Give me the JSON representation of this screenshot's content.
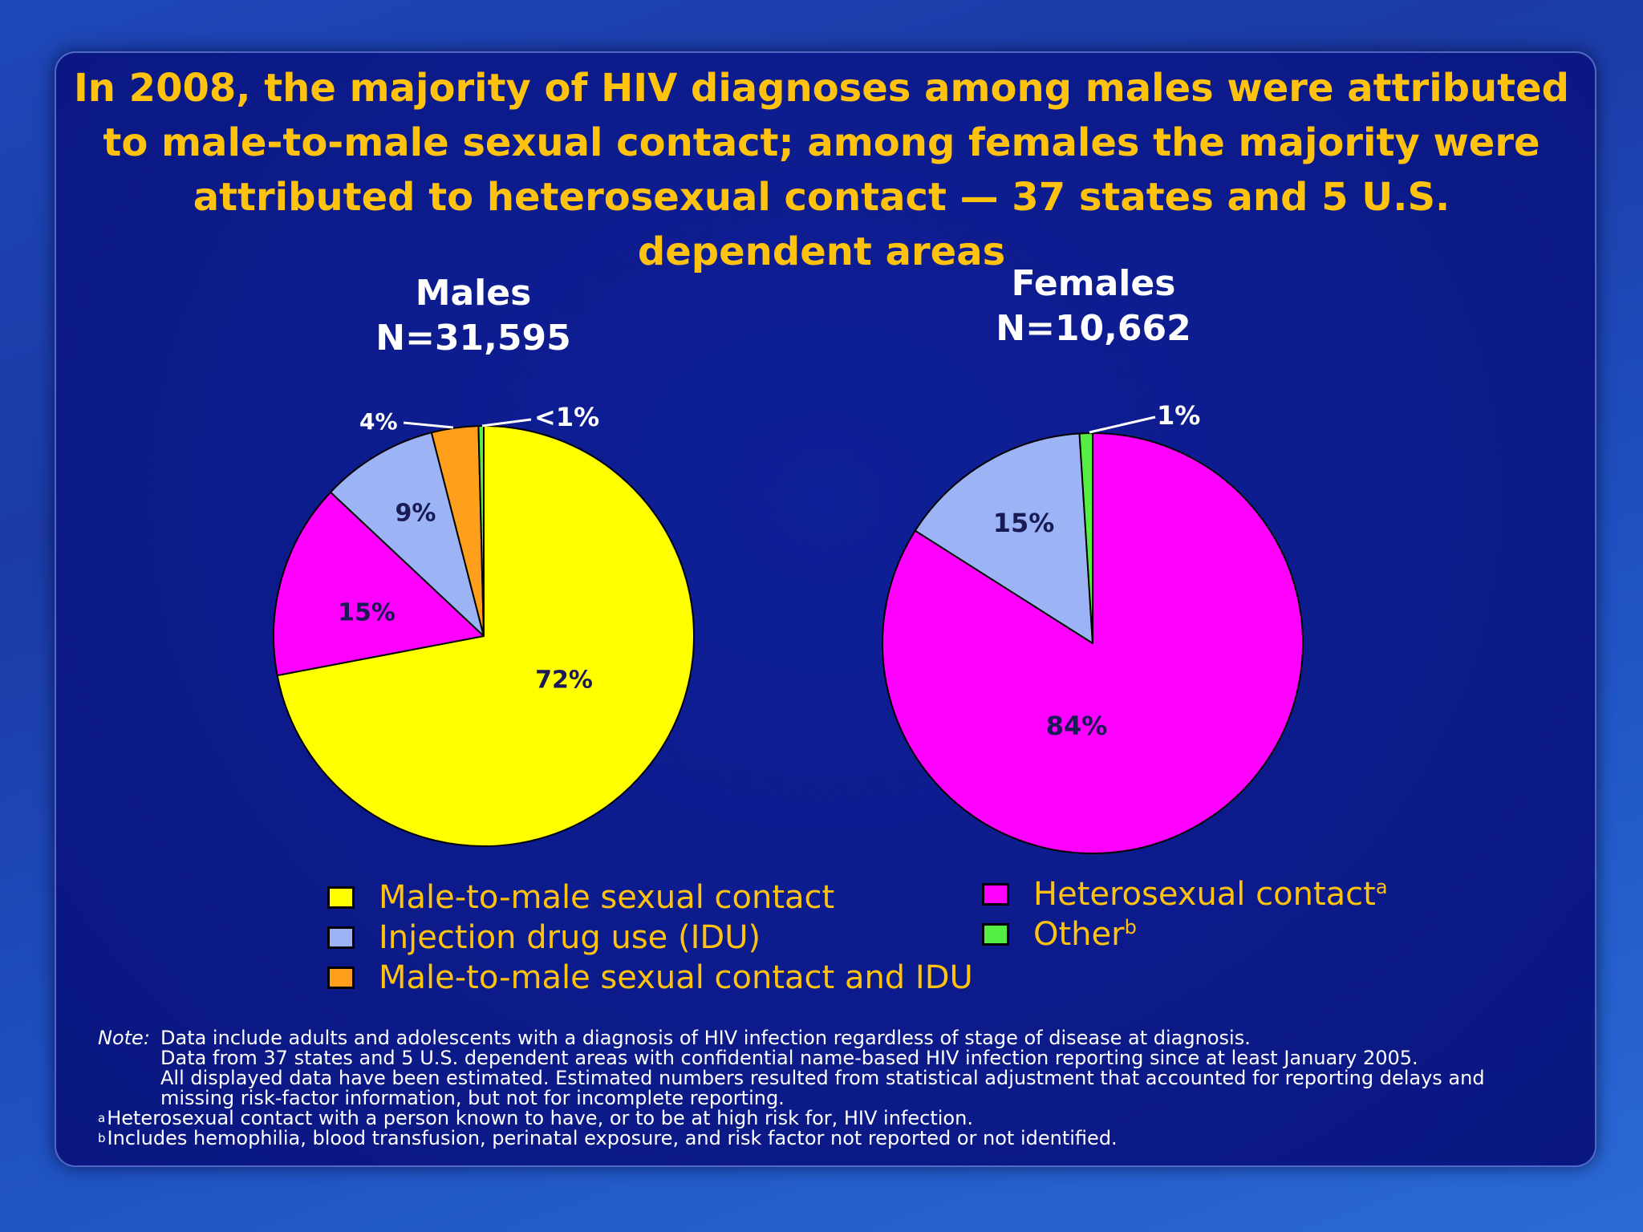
{
  "title": "In 2008, the majority of HIV diagnoses among males were attributed to male-to-male sexual contact; among females the majority were attributed to heterosexual contact — 37 states and 5 U.S. dependent areas",
  "colors": {
    "male_to_male": "#ffff00",
    "idu": "#9cb3f5",
    "mm_and_idu": "#ff9f1c",
    "heterosexual": "#ff00ff",
    "other": "#55ee44",
    "title": "#ffc20e"
  },
  "chart_data": [
    {
      "type": "pie",
      "title": "Males",
      "subtitle": "N=31,595",
      "slices": [
        {
          "name": "Male-to-male sexual contact",
          "value": 72,
          "label": "72%",
          "color": "#ffff00"
        },
        {
          "name": "Heterosexual contact",
          "value": 15,
          "label": "15%",
          "color": "#ff00ff"
        },
        {
          "name": "Injection drug use (IDU)",
          "value": 9,
          "label": "9%",
          "color": "#9cb3f5"
        },
        {
          "name": "Male-to-male sexual contact and IDU",
          "value": 3.6,
          "label": "4%",
          "color": "#ff9f1c"
        },
        {
          "name": "Other",
          "value": 0.4,
          "label": "<1%",
          "color": "#55ee44"
        }
      ]
    },
    {
      "type": "pie",
      "title": "Females",
      "subtitle": "N=10,662",
      "slices": [
        {
          "name": "Heterosexual contact",
          "value": 84,
          "label": "84%",
          "color": "#ff00ff"
        },
        {
          "name": "Injection drug use (IDU)",
          "value": 15,
          "label": "15%",
          "color": "#9cb3f5"
        },
        {
          "name": "Other",
          "value": 1,
          "label": "1%",
          "color": "#55ee44"
        }
      ]
    }
  ],
  "legend": {
    "left": [
      {
        "label": "Male-to-male sexual contact",
        "color": "#ffff00"
      },
      {
        "label": "Injection drug use (IDU)",
        "color": "#9cb3f5"
      },
      {
        "label": "Male-to-male sexual contact and IDU",
        "color": "#ff9f1c"
      }
    ],
    "right": [
      {
        "label": "Heterosexual contact",
        "sup": "a",
        "color": "#ff00ff"
      },
      {
        "label": "Other",
        "sup": "b",
        "color": "#55ee44"
      }
    ]
  },
  "notes": {
    "note_label": "Note:",
    "note_lines": [
      "Data include adults and adolescents with a diagnosis of HIV infection regardless of stage of disease at diagnosis.",
      "Data from 37 states and 5 U.S. dependent areas with confidential name-based HIV infection reporting since at least January 2005.",
      "All displayed data have been estimated. Estimated numbers resulted from statistical adjustment that accounted for reporting delays and",
      "missing risk-factor information, but not for incomplete reporting."
    ],
    "footnotes": [
      {
        "mark": "a",
        "text": "Heterosexual contact with a person known to have, or to be at high risk for, HIV infection."
      },
      {
        "mark": "b",
        "text": "Includes hemophilia, blood transfusion, perinatal exposure, and risk factor not reported or not identified."
      }
    ]
  }
}
